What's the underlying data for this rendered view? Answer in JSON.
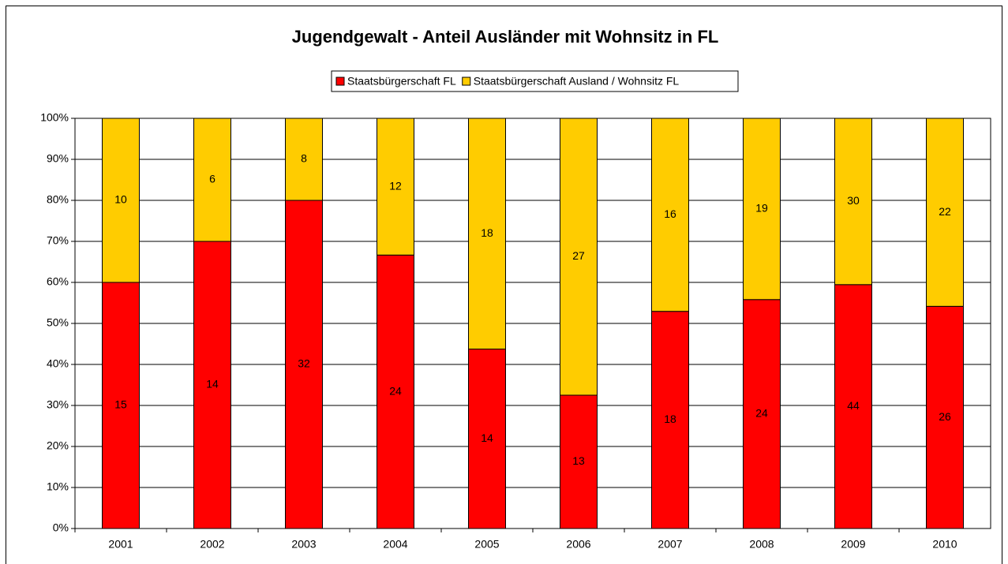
{
  "chart_data": {
    "type": "bar",
    "stacking": "percent",
    "title": "Jugendgewalt - Anteil Ausländer mit Wohnsitz in FL",
    "categories": [
      "2001",
      "2002",
      "2003",
      "2004",
      "2005",
      "2006",
      "2007",
      "2008",
      "2009",
      "2010"
    ],
    "series": [
      {
        "name": "Staatsbürgerschaft FL",
        "color": "#ff0000",
        "values": [
          15,
          14,
          32,
          24,
          14,
          13,
          18,
          24,
          44,
          26
        ]
      },
      {
        "name": "Staatsbürgerschaft Ausland / Wohnsitz FL",
        "color": "#ffcc00",
        "values": [
          10,
          6,
          8,
          12,
          18,
          27,
          16,
          19,
          30,
          22
        ]
      }
    ],
    "ylim": [
      0,
      100
    ],
    "yticks": [
      {
        "value": 0,
        "label": "0%"
      },
      {
        "value": 10,
        "label": "10%"
      },
      {
        "value": 20,
        "label": "20%"
      },
      {
        "value": 30,
        "label": "30%"
      },
      {
        "value": 40,
        "label": "40%"
      },
      {
        "value": 50,
        "label": "50%"
      },
      {
        "value": 60,
        "label": "60%"
      },
      {
        "value": 70,
        "label": "70%"
      },
      {
        "value": 80,
        "label": "80%"
      },
      {
        "value": 90,
        "label": "90%"
      },
      {
        "value": 100,
        "label": "100%"
      }
    ],
    "grid": true,
    "legend": "top"
  }
}
